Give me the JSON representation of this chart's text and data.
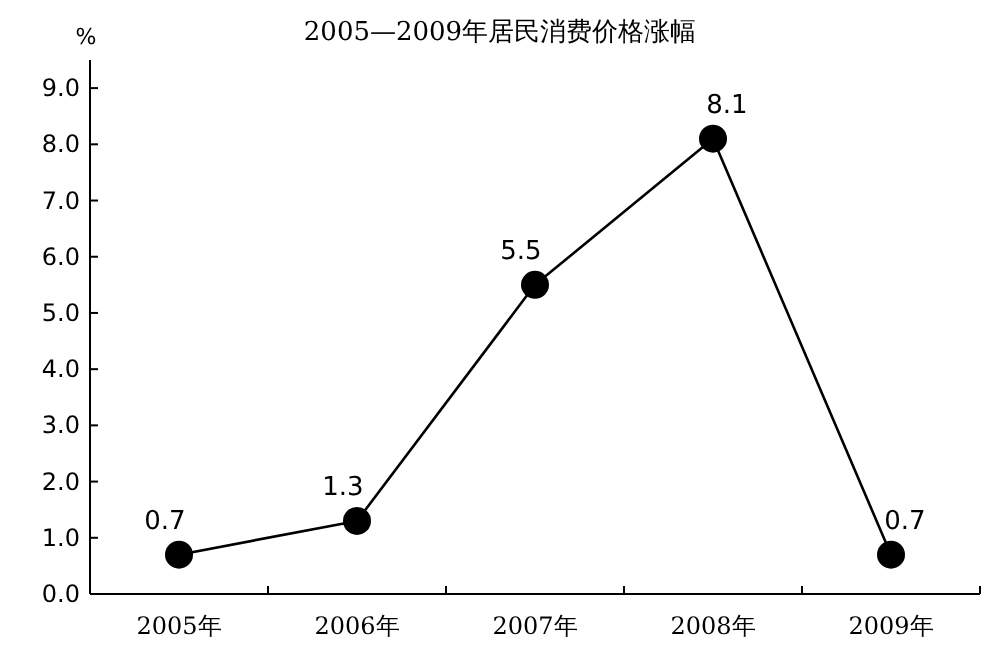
{
  "chart_data": {
    "type": "line",
    "title": "2005—2009年居民消费价格涨幅",
    "ylabel": "%",
    "categories": [
      "2005年",
      "2006年",
      "2007年",
      "2008年",
      "2009年"
    ],
    "series": [
      {
        "color": "#000000",
        "values": [
          0.7,
          1.3,
          5.5,
          8.1,
          0.7
        ]
      }
    ],
    "data_labels": true,
    "ylim": [
      0,
      9.5
    ],
    "yticks": [
      {
        "value": 0,
        "label": "0.0"
      },
      {
        "value": 1,
        "label": "1.0"
      },
      {
        "value": 2,
        "label": "2.0"
      },
      {
        "value": 3,
        "label": "3.0"
      },
      {
        "value": 4,
        "label": "4.0"
      },
      {
        "value": 5,
        "label": "5.0"
      },
      {
        "value": 6,
        "label": "6.0"
      },
      {
        "value": 7,
        "label": "7.0"
      },
      {
        "value": 8,
        "label": "8.0"
      },
      {
        "value": 9,
        "label": "9.0"
      }
    ],
    "marker": "circle",
    "line_style": "solid",
    "grid": false
  }
}
